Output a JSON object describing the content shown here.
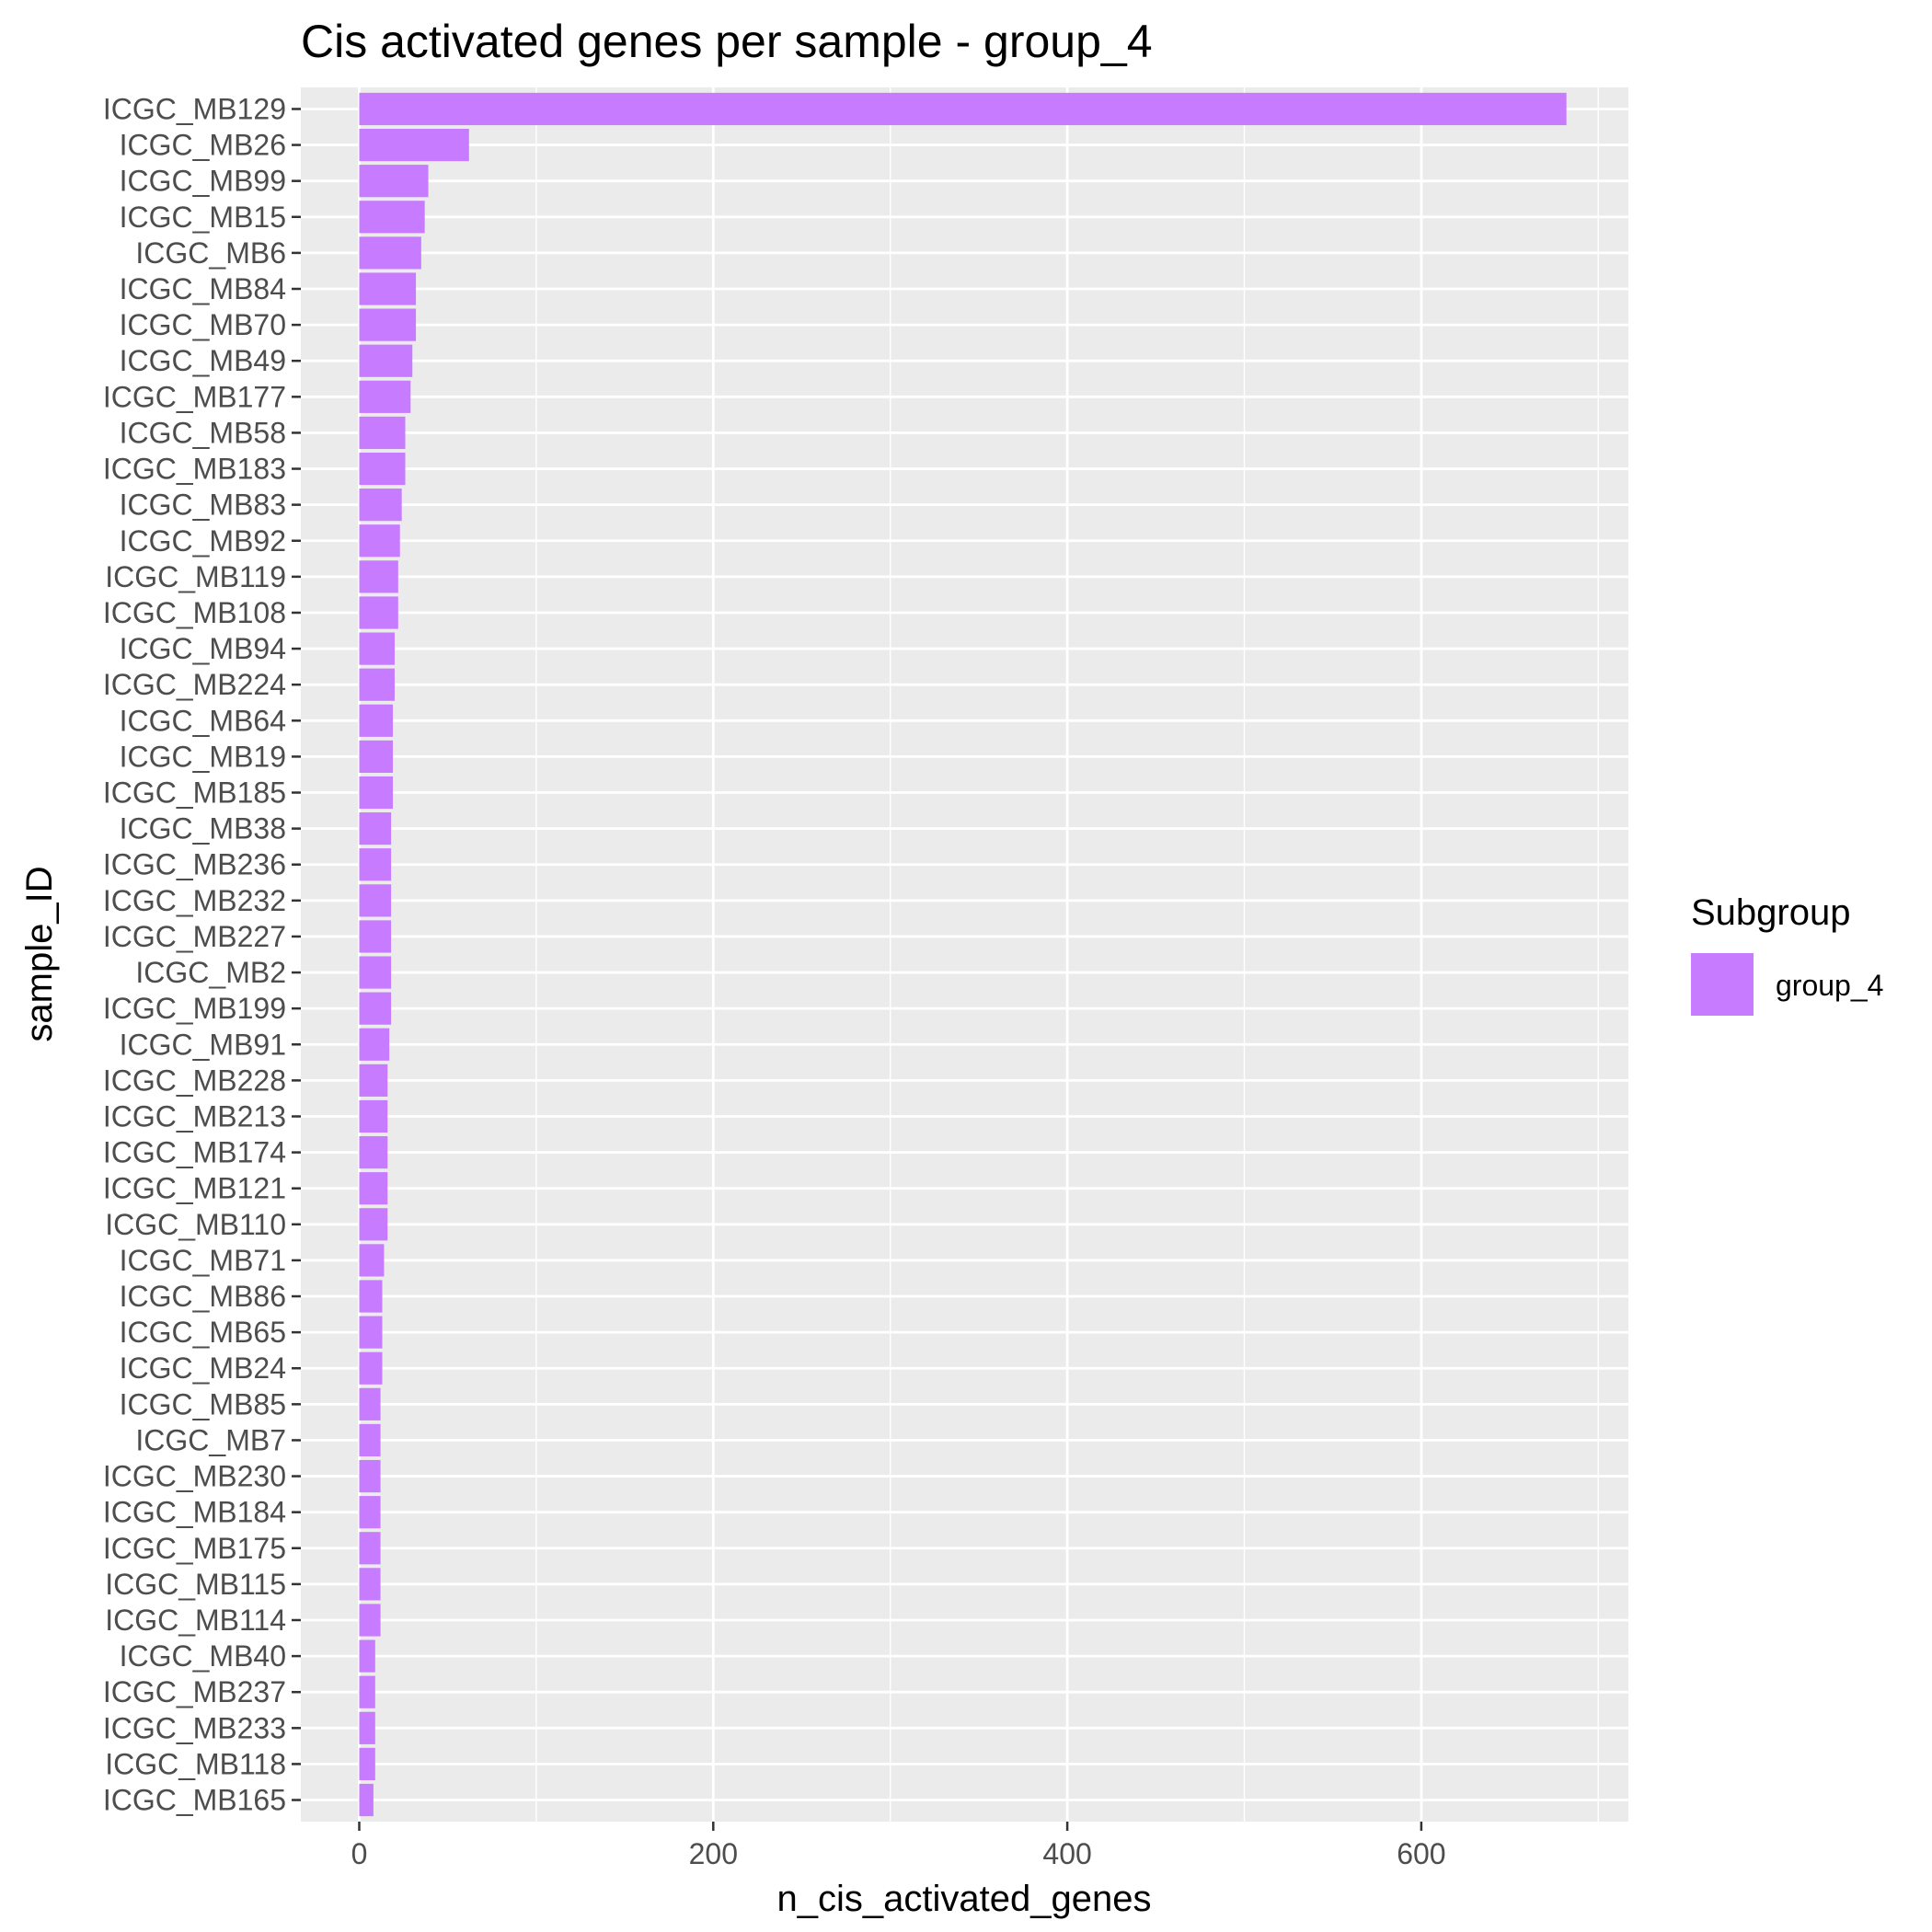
{
  "chart_data": {
    "type": "bar",
    "orientation": "horizontal",
    "title": "Cis activated genes per sample - group_4",
    "xlabel": "n_cis_activated_genes",
    "ylabel": "sample_ID",
    "xlim": [
      -33,
      717
    ],
    "x_ticks": [
      0,
      200,
      400,
      600
    ],
    "grid": true,
    "legend": {
      "title": "Subgroup",
      "position": "right",
      "entries": [
        "group_4"
      ]
    },
    "colors": {
      "bar": "#c77cff",
      "panel": "#ebebeb",
      "grid": "#ffffff"
    },
    "categories": [
      "ICGC_MB129",
      "ICGC_MB26",
      "ICGC_MB99",
      "ICGC_MB15",
      "ICGC_MB6",
      "ICGC_MB84",
      "ICGC_MB70",
      "ICGC_MB49",
      "ICGC_MB177",
      "ICGC_MB58",
      "ICGC_MB183",
      "ICGC_MB83",
      "ICGC_MB92",
      "ICGC_MB119",
      "ICGC_MB108",
      "ICGC_MB94",
      "ICGC_MB224",
      "ICGC_MB64",
      "ICGC_MB19",
      "ICGC_MB185",
      "ICGC_MB38",
      "ICGC_MB236",
      "ICGC_MB232",
      "ICGC_MB227",
      "ICGC_MB2",
      "ICGC_MB199",
      "ICGC_MB91",
      "ICGC_MB228",
      "ICGC_MB213",
      "ICGC_MB174",
      "ICGC_MB121",
      "ICGC_MB110",
      "ICGC_MB71",
      "ICGC_MB86",
      "ICGC_MB65",
      "ICGC_MB24",
      "ICGC_MB85",
      "ICGC_MB7",
      "ICGC_MB230",
      "ICGC_MB184",
      "ICGC_MB175",
      "ICGC_MB115",
      "ICGC_MB114",
      "ICGC_MB40",
      "ICGC_MB237",
      "ICGC_MB233",
      "ICGC_MB118",
      "ICGC_MB165"
    ],
    "series": [
      {
        "name": "group_4",
        "values": [
          682,
          62,
          39,
          37,
          35,
          32,
          32,
          30,
          29,
          26,
          26,
          24,
          23,
          22,
          22,
          20,
          20,
          19,
          19,
          19,
          18,
          18,
          18,
          18,
          18,
          18,
          17,
          16,
          16,
          16,
          16,
          16,
          14,
          13,
          13,
          13,
          12,
          12,
          12,
          12,
          12,
          12,
          12,
          9,
          9,
          9,
          9,
          8
        ]
      }
    ]
  }
}
